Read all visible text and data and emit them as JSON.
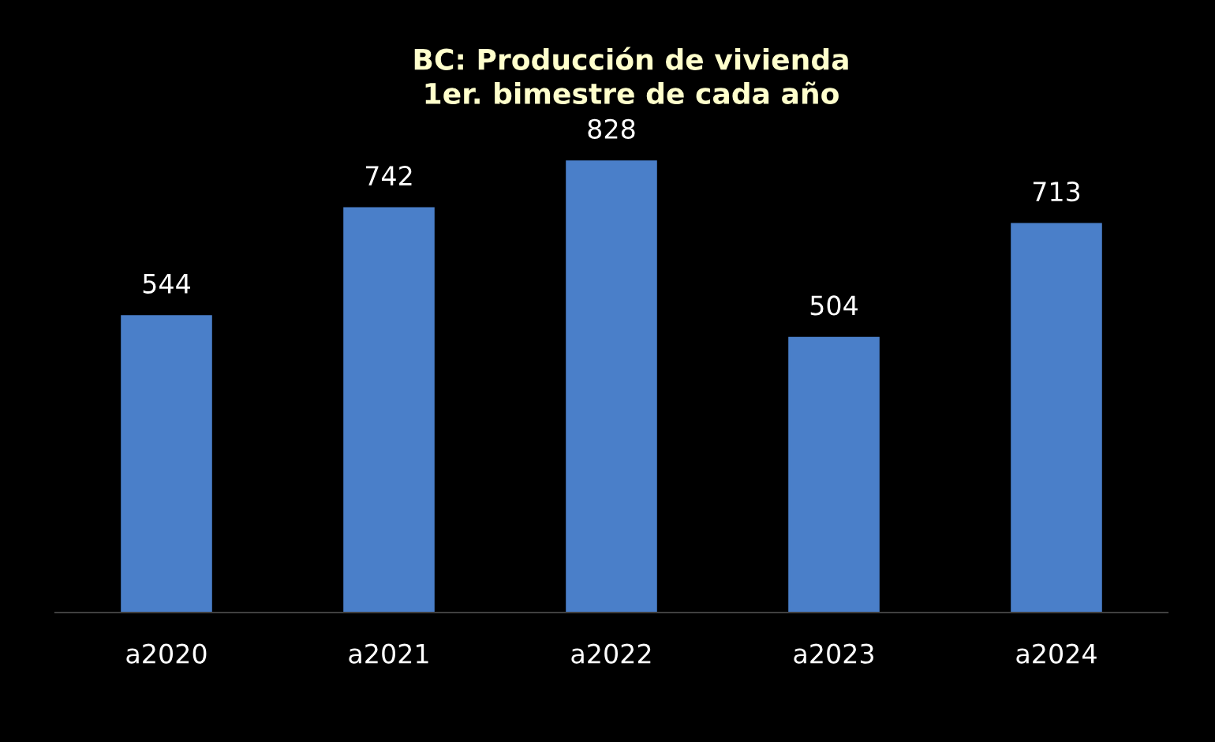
{
  "chart_data": {
    "type": "bar",
    "title": "BC: Producción de vivienda\n1er. bimestre de cada año",
    "categories": [
      "a2020",
      "a2021",
      "a2022",
      "a2023",
      "a2024"
    ],
    "values": [
      544,
      742,
      828,
      504,
      713
    ],
    "color": "#4a7fc9",
    "data_labels": true,
    "grid": false,
    "legend": false
  }
}
